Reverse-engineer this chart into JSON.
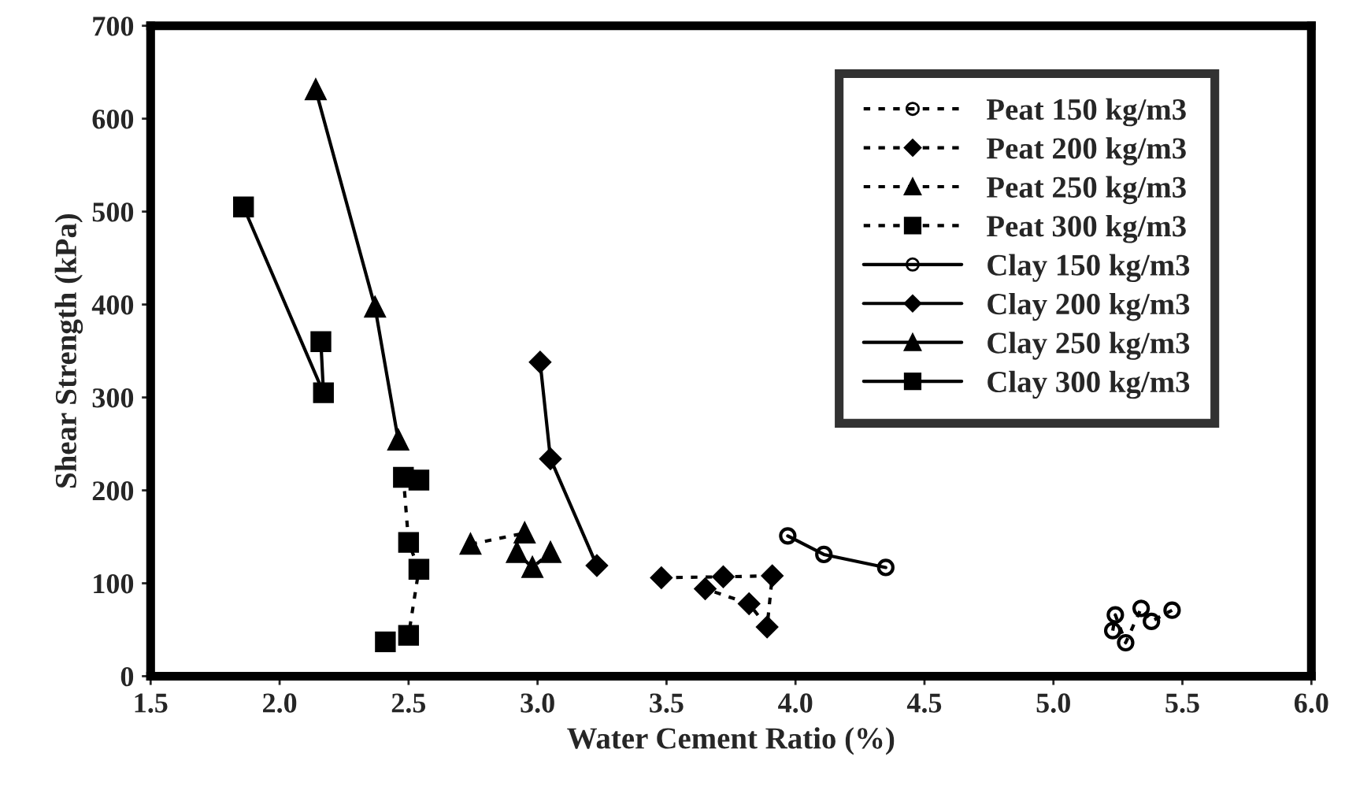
{
  "chart_data": {
    "type": "line",
    "xlabel": "Water Cement Ratio (%)",
    "ylabel": "Shear Strength (kPa)",
    "xlim": [
      1.5,
      6.0
    ],
    "ylim": [
      0,
      700
    ],
    "xticks": [
      1.5,
      {
        "value": 2,
        "label": "2.0"
      },
      2.5,
      {
        "value": 3,
        "label": "3.0"
      },
      3.5,
      {
        "value": 4,
        "label": "4.0"
      },
      4.5,
      {
        "value": 5,
        "label": "5.0"
      },
      5.5,
      {
        "value": 6,
        "label": "6.0"
      }
    ],
    "yticks": [
      0,
      100,
      200,
      300,
      400,
      500,
      600,
      700
    ],
    "grid": false,
    "legend": "top right",
    "series": [
      {
        "name": "Peat 150 kg/m3",
        "color": "#000000",
        "marker": "circle",
        "line_style": "dotted",
        "x": [
          5.23,
          5.24,
          5.28,
          5.34,
          5.38,
          5.46
        ],
        "values": [
          49,
          66,
          36,
          73,
          59,
          71
        ]
      },
      {
        "name": "Peat 200 kg/m3",
        "color": "#000000",
        "marker": "diamond",
        "line_style": "dotted",
        "x": [
          3.48,
          3.72,
          3.91,
          3.89,
          3.82,
          3.65
        ],
        "values": [
          106,
          107,
          108,
          53,
          78,
          94
        ]
      },
      {
        "name": "Peat 250 kg/m3",
        "color": "#000000",
        "marker": "triangle",
        "line_style": "dotted",
        "x": [
          2.74,
          2.95,
          2.92,
          2.98,
          3.05
        ],
        "values": [
          142,
          154,
          133,
          117,
          133
        ]
      },
      {
        "name": "Peat 300 kg/m3",
        "color": "#000000",
        "marker": "square",
        "line_style": "dotted",
        "x": [
          2.54,
          2.48,
          2.5,
          2.54,
          2.5,
          2.41
        ],
        "values": [
          211,
          214,
          144,
          115,
          44,
          37
        ]
      },
      {
        "name": "Clay 150 kg/m3",
        "color": "#000000",
        "marker": "circle",
        "line_style": "solid",
        "x": [
          3.97,
          4.11,
          4.35
        ],
        "values": [
          151,
          131,
          117
        ]
      },
      {
        "name": "Clay 200 kg/m3",
        "color": "#000000",
        "marker": "diamond",
        "line_style": "solid",
        "x": [
          3.01,
          3.05,
          3.23
        ],
        "values": [
          338,
          234,
          119
        ]
      },
      {
        "name": "Clay 250 kg/m3",
        "color": "#000000",
        "marker": "triangle",
        "line_style": "solid",
        "x": [
          2.14,
          2.37,
          2.46
        ],
        "values": [
          631,
          397,
          254
        ]
      },
      {
        "name": "Clay 300 kg/m3",
        "color": "#000000",
        "marker": "square",
        "line_style": "solid",
        "x": [
          1.86,
          2.17,
          2.16
        ],
        "values": [
          505,
          305,
          360
        ]
      }
    ]
  }
}
